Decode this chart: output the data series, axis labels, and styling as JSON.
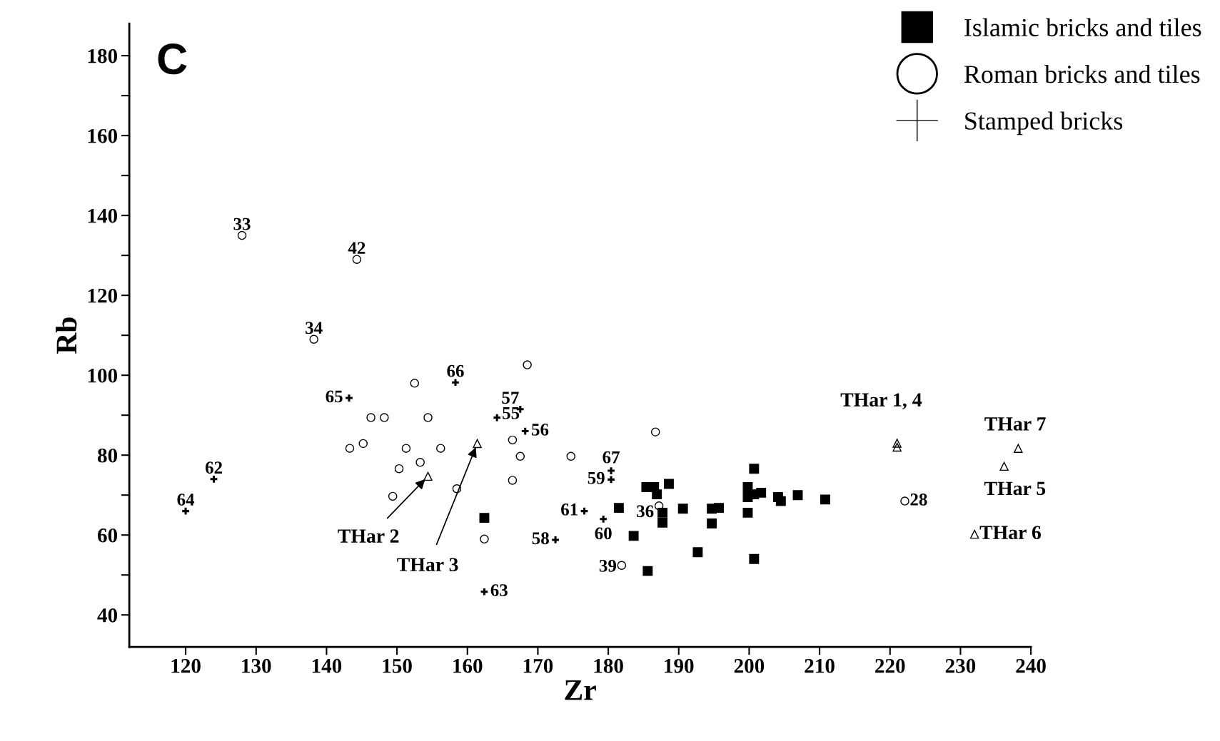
{
  "chart_data": {
    "type": "scatter",
    "title": "C",
    "xlabel": "Zr",
    "ylabel": "Rb",
    "xlim": [
      112,
      240
    ],
    "ylim": [
      32,
      188
    ],
    "xticks": [
      120,
      130,
      140,
      150,
      160,
      170,
      180,
      190,
      200,
      210,
      220,
      230,
      240
    ],
    "yticks": [
      40,
      {
        "value": 50,
        "label": null
      },
      60,
      {
        "value": 70,
        "label": null
      },
      80,
      {
        "value": 90,
        "label": null
      },
      100,
      {
        "value": 110,
        "label": null
      },
      120,
      {
        "value": 130,
        "label": null
      },
      140,
      {
        "value": 150,
        "label": null
      },
      160,
      {
        "value": 170,
        "label": null
      },
      180
    ],
    "grid": false,
    "legend": "top right",
    "series": [
      {
        "name": "Islamic bricks and tiles",
        "color": "#000000",
        "marker": "square",
        "x": [
          162.4,
          181.5,
          183.6,
          185.6,
          185.4,
          186.5,
          186.9,
          188.6,
          187.7,
          187.7,
          190.6,
          192.7,
          194.7,
          195.7,
          194.7,
          199.8,
          199.8,
          199.8,
          200.7,
          200.7,
          201.7,
          204.1,
          204.5,
          206.9,
          210.8,
          200.7
        ],
        "values": [
          64.3,
          66.8,
          59.8,
          51,
          72,
          72,
          70.2,
          72.8,
          65.6,
          63.1,
          66.6,
          55.7,
          66.6,
          66.8,
          62.9,
          72,
          69.5,
          65.6,
          76.6,
          70.2,
          70.6,
          69.5,
          68.5,
          70,
          68.9,
          54
        ]
      },
      {
        "name": "Roman bricks and tiles",
        "color": "#000000",
        "marker": "circle",
        "x": [
          128,
          144.3,
          138.2,
          152.5,
          168.5,
          146.3,
          148.2,
          154.4,
          143.3,
          145.2,
          151.3,
          150.3,
          153.3,
          156.2,
          149.4,
          158.5,
          162.4,
          166.4,
          167.5,
          166.4,
          174.7,
          186.7,
          181.9,
          222.1,
          187.2
        ],
        "values": [
          135,
          129,
          109,
          98,
          102.6,
          89.4,
          89.4,
          89.4,
          81.7,
          82.9,
          81.7,
          76.6,
          78.2,
          81.7,
          69.7,
          71.6,
          59,
          83.8,
          79.7,
          73.7,
          79.7,
          85.8,
          52.4,
          68.5,
          67.3
        ]
      },
      {
        "name": "Stamped bricks",
        "color": "#000000",
        "marker": "cross",
        "x": [
          120,
          124,
          143.2,
          158.3,
          167.5,
          164.2,
          168.2,
          180.4,
          180.4,
          176.6,
          179.3,
          172.5,
          162.4
        ],
        "values": [
          66,
          74,
          94.3,
          98.2,
          91.5,
          89.4,
          86,
          76.1,
          73.9,
          66,
          64,
          58.8,
          45.8
        ]
      },
      {
        "color": "#000000",
        "marker": "triangle",
        "x": [
          154.4,
          161.4,
          221,
          221,
          238.2,
          236.2,
          232
        ],
        "values": [
          74.7,
          82.9,
          83,
          82,
          81.7,
          77.2,
          60.2
        ]
      }
    ],
    "annotations": [
      {
        "text": "33",
        "x": 128,
        "y": 135
      },
      {
        "text": "42",
        "x": 144.3,
        "y": 129
      },
      {
        "text": "34",
        "x": 138.2,
        "y": 109
      },
      {
        "text": "64",
        "x": 120,
        "y": 66
      },
      {
        "text": "62",
        "x": 124,
        "y": 74
      },
      {
        "text": "65",
        "x": 143.2,
        "y": 94.3
      },
      {
        "text": "66",
        "x": 158.3,
        "y": 98.2
      },
      {
        "text": "57",
        "x": 167.5,
        "y": 91.5
      },
      {
        "text": "55",
        "x": 164.2,
        "y": 89.4
      },
      {
        "text": "56",
        "x": 168.2,
        "y": 86
      },
      {
        "text": "67",
        "x": 180.4,
        "y": 76.1
      },
      {
        "text": "59",
        "x": 180.4,
        "y": 73.9
      },
      {
        "text": "61",
        "x": 176.6,
        "y": 66
      },
      {
        "text": "60",
        "x": 179.3,
        "y": 64
      },
      {
        "text": "58",
        "x": 172.5,
        "y": 58.8
      },
      {
        "text": "63",
        "x": 162.4,
        "y": 45.8
      },
      {
        "text": "39",
        "x": 181.9,
        "y": 52.4
      },
      {
        "text": "36",
        "x": 187.2,
        "y": 67.3
      },
      {
        "text": "28",
        "x": 222.1,
        "y": 68.5
      },
      {
        "text": "THar 2",
        "x": 154.4,
        "y": 74.7
      },
      {
        "text": "THar 3",
        "x": 161.4,
        "y": 82.9
      },
      {
        "text": "THar 1, 4",
        "x": 221,
        "y": 83
      },
      {
        "text": "THar 7",
        "x": 238.2,
        "y": 81.7
      },
      {
        "text": "THar 5",
        "x": 236.2,
        "y": 77.2
      },
      {
        "text": "THar 6",
        "x": 232,
        "y": 60.2
      }
    ]
  }
}
